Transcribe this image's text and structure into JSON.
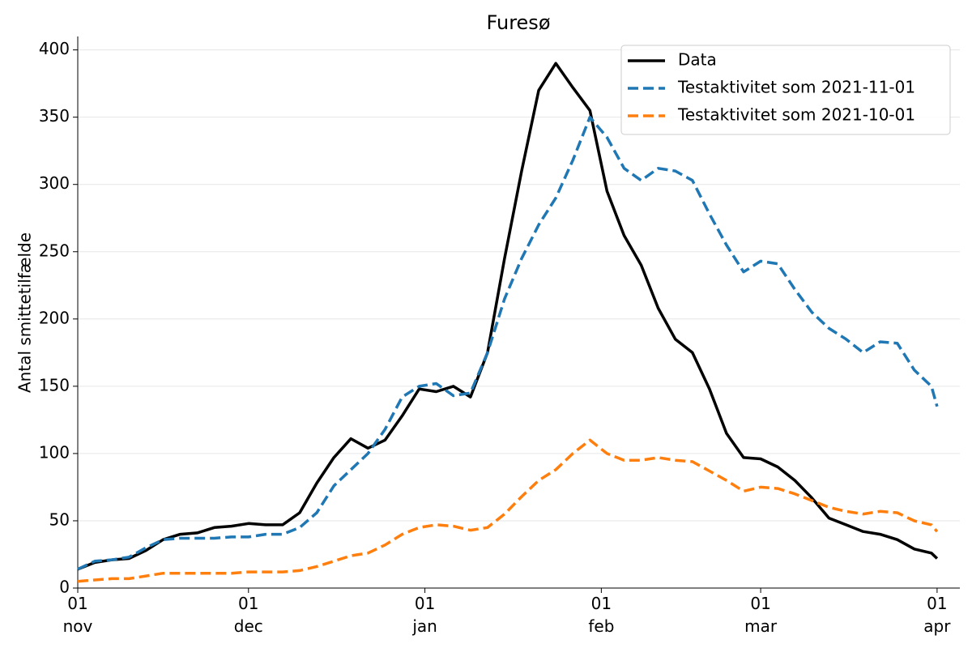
{
  "chart_data": {
    "type": "line",
    "title": "Furesø",
    "y_label": "Antal smittetilfælde",
    "x": [
      "11-01",
      "11-04",
      "11-07",
      "11-10",
      "11-13",
      "11-16",
      "11-19",
      "11-22",
      "11-25",
      "11-28",
      "12-01",
      "12-04",
      "12-07",
      "12-10",
      "12-13",
      "12-16",
      "12-19",
      "12-22",
      "12-25",
      "12-28",
      "12-31",
      "01-03",
      "01-06",
      "01-09",
      "01-12",
      "01-15",
      "01-18",
      "01-21",
      "01-24",
      "01-27",
      "01-30",
      "02-02",
      "02-05",
      "02-08",
      "02-11",
      "02-14",
      "02-17",
      "02-20",
      "02-23",
      "02-26",
      "03-01",
      "03-04",
      "03-07",
      "03-10",
      "03-13",
      "03-16",
      "03-19",
      "03-22",
      "03-25",
      "03-28",
      "03-31",
      "04-01"
    ],
    "series": [
      {
        "name": "Data",
        "color": "#000000",
        "dash": "solid",
        "values": [
          14,
          19,
          21,
          22,
          28,
          36,
          40,
          41,
          45,
          46,
          48,
          47,
          47,
          56,
          78,
          97,
          111,
          104,
          110,
          128,
          148,
          146,
          150,
          142,
          175,
          245,
          310,
          370,
          390,
          372,
          355,
          295,
          262,
          240,
          208,
          185,
          175,
          148,
          115,
          97,
          96,
          90,
          80,
          67,
          52,
          47,
          42,
          40,
          36,
          29,
          26,
          22
        ]
      },
      {
        "name": "Testaktivitet som 2021-11-01",
        "color": "#1f77b4",
        "dash": "dashed",
        "values": [
          14,
          20,
          21,
          23,
          30,
          36,
          37,
          37,
          37,
          38,
          38,
          40,
          40,
          45,
          56,
          76,
          88,
          100,
          118,
          142,
          150,
          152,
          143,
          145,
          175,
          215,
          245,
          270,
          290,
          318,
          350,
          335,
          312,
          303,
          312,
          310,
          303,
          278,
          255,
          235,
          243,
          241,
          222,
          205,
          193,
          185,
          175,
          183,
          182,
          162,
          150,
          135
        ]
      },
      {
        "name": "Testaktivitet som 2021-10-01",
        "color": "#ff7f0e",
        "dash": "dashed",
        "values": [
          5,
          6,
          7,
          7,
          9,
          11,
          11,
          11,
          11,
          11,
          12,
          12,
          12,
          13,
          16,
          20,
          24,
          26,
          32,
          40,
          45,
          47,
          46,
          43,
          45,
          55,
          68,
          80,
          88,
          100,
          110,
          100,
          95,
          95,
          97,
          95,
          94,
          87,
          80,
          72,
          75,
          74,
          70,
          65,
          60,
          57,
          55,
          57,
          56,
          50,
          47,
          42
        ]
      }
    ],
    "xlim": [
      "11-01",
      "04-05"
    ],
    "xticks": [
      {
        "value": "11-01",
        "label": "01\nnov"
      },
      {
        "value": "12-01",
        "label": "01\ndec"
      },
      {
        "value": "01-01",
        "label": "01\njan"
      },
      {
        "value": "02-01",
        "label": "01\nfeb"
      },
      {
        "value": "03-01",
        "label": "01\nmar"
      },
      {
        "value": "04-01",
        "label": "01\napr"
      }
    ],
    "ylim": [
      0,
      410
    ],
    "yticks": [
      0,
      50,
      100,
      150,
      200,
      250,
      300,
      350,
      400
    ],
    "grid": "y",
    "legend": "upper right"
  }
}
